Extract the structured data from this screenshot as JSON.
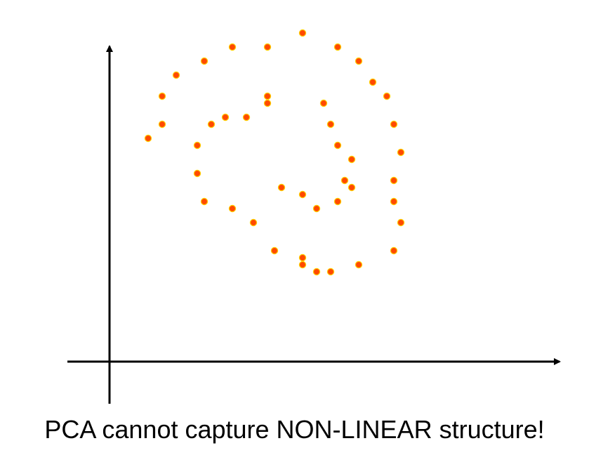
{
  "caption": "PCA cannot capture NON-LINEAR structure!",
  "colors": {
    "point_fill": "#ff4a00",
    "point_stroke": "#ffd000",
    "axis": "#000000"
  },
  "chart_data": {
    "type": "scatter",
    "title": "",
    "xlabel": "",
    "ylabel": "",
    "grid": false,
    "xlim": [
      -6,
      640
    ],
    "ylim": [
      -60,
      468
    ],
    "points": [
      [
        275,
        468
      ],
      [
        225,
        448
      ],
      [
        175,
        448
      ],
      [
        325,
        448
      ],
      [
        135,
        428
      ],
      [
        355,
        428
      ],
      [
        95,
        408
      ],
      [
        375,
        398
      ],
      [
        75,
        378
      ],
      [
        395,
        378
      ],
      [
        225,
        378
      ],
      [
        305,
        368
      ],
      [
        225,
        368
      ],
      [
        75,
        338
      ],
      [
        145,
        338
      ],
      [
        165,
        348
      ],
      [
        195,
        348
      ],
      [
        315,
        338
      ],
      [
        405,
        338
      ],
      [
        55,
        318
      ],
      [
        125,
        308
      ],
      [
        325,
        308
      ],
      [
        415,
        298
      ],
      [
        345,
        288
      ],
      [
        125,
        268
      ],
      [
        405,
        258
      ],
      [
        335,
        258
      ],
      [
        245,
        248
      ],
      [
        345,
        248
      ],
      [
        275,
        238
      ],
      [
        135,
        228
      ],
      [
        325,
        228
      ],
      [
        405,
        228
      ],
      [
        175,
        218
      ],
      [
        295,
        218
      ],
      [
        415,
        198
      ],
      [
        205,
        198
      ],
      [
        405,
        158
      ],
      [
        235,
        158
      ],
      [
        275,
        148
      ],
      [
        355,
        138
      ],
      [
        275,
        138
      ],
      [
        295,
        128
      ],
      [
        315,
        128
      ]
    ]
  }
}
